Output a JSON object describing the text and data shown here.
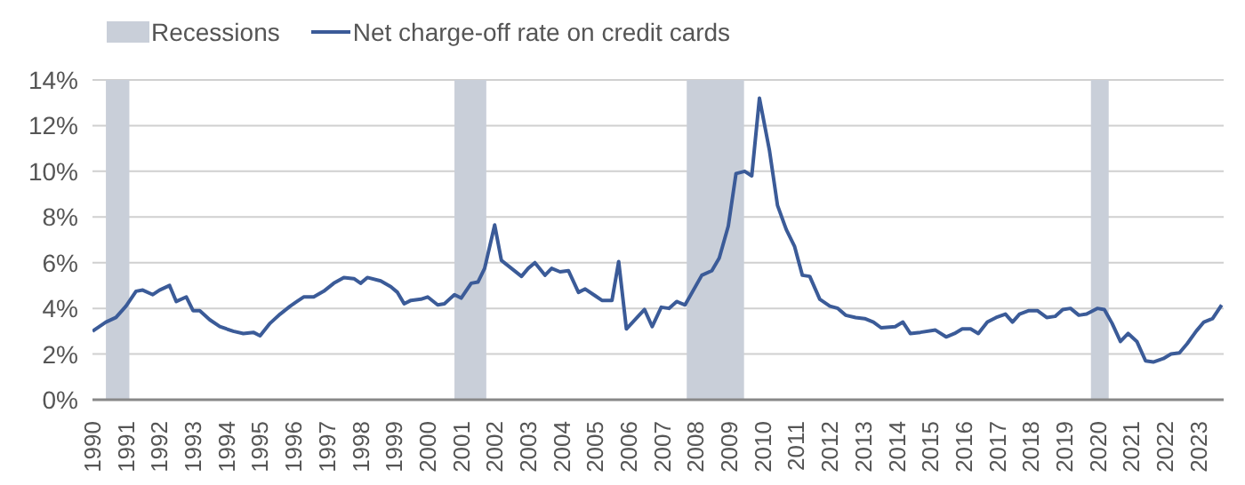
{
  "chart_data": {
    "type": "line",
    "legend": "top left",
    "grid": "y",
    "x": [
      1990.0,
      1990.4,
      1990.7,
      1991.0,
      1991.3,
      1991.5,
      1991.8,
      1992.0,
      1992.3,
      1992.5,
      1992.8,
      1993.0,
      1993.2,
      1993.5,
      1993.8,
      1994.2,
      1994.5,
      1994.8,
      1995.0,
      1995.3,
      1995.6,
      1995.9,
      1996.1,
      1996.3,
      1996.6,
      1996.9,
      1997.2,
      1997.5,
      1997.8,
      1998.0,
      1998.2,
      1998.6,
      1998.9,
      1999.1,
      1999.3,
      1999.5,
      1999.8,
      2000.0,
      2000.3,
      2000.5,
      2000.8,
      2001.0,
      2001.3,
      2001.5,
      2001.7,
      2002.0,
      2002.2,
      2002.5,
      2002.8,
      2003.0,
      2003.2,
      2003.5,
      2003.7,
      2003.95,
      2004.2,
      2004.5,
      2004.7,
      2005.0,
      2005.2,
      2005.5,
      2005.7,
      2005.93,
      2006.47,
      2006.7,
      2006.97,
      2007.2,
      2007.43,
      2007.68,
      2008.18,
      2008.48,
      2008.7,
      2008.97,
      2009.2,
      2009.46,
      2009.67,
      2009.9,
      2010.2,
      2010.44,
      2010.7,
      2010.95,
      2011.18,
      2011.4,
      2011.7,
      2012.0,
      2012.24,
      2012.47,
      2012.77,
      2013.04,
      2013.3,
      2013.53,
      2013.95,
      2014.18,
      2014.4,
      2014.7,
      2015.15,
      2015.47,
      2015.72,
      2015.95,
      2016.2,
      2016.43,
      2016.7,
      2016.96,
      2017.24,
      2017.45,
      2017.66,
      2017.94,
      2018.19,
      2018.47,
      2018.72,
      2018.95,
      2019.18,
      2019.43,
      2019.66,
      2019.98,
      2020.19,
      2020.42,
      2020.67,
      2020.9,
      2021.16,
      2021.42,
      2021.65,
      2021.95,
      2022.18,
      2022.43,
      2022.66,
      2022.93,
      2023.16,
      2023.42,
      2023.69
    ],
    "series": [
      {
        "name": "Net charge-off rate on credit cards",
        "color": "#3b5b98",
        "values": [
          3.0,
          3.4,
          3.6,
          4.1,
          4.75,
          4.8,
          4.6,
          4.8,
          5.0,
          4.3,
          4.5,
          3.9,
          3.9,
          3.5,
          3.2,
          3.0,
          2.9,
          2.95,
          2.8,
          3.35,
          3.75,
          4.1,
          4.3,
          4.5,
          4.5,
          4.75,
          5.1,
          5.35,
          5.3,
          5.1,
          5.35,
          5.2,
          4.95,
          4.7,
          4.2,
          4.35,
          4.4,
          4.5,
          4.15,
          4.2,
          4.6,
          4.45,
          5.1,
          5.15,
          5.75,
          7.65,
          6.1,
          5.75,
          5.4,
          5.75,
          6.0,
          5.45,
          5.75,
          5.6,
          5.65,
          4.7,
          4.85,
          4.55,
          4.35,
          4.35,
          6.05,
          3.1,
          3.95,
          3.2,
          4.05,
          4.0,
          4.3,
          4.15,
          5.45,
          5.65,
          6.2,
          7.6,
          9.9,
          10.0,
          9.8,
          13.2,
          10.9,
          8.5,
          7.45,
          6.7,
          5.45,
          5.4,
          4.4,
          4.1,
          4.0,
          3.7,
          3.6,
          3.55,
          3.4,
          3.15,
          3.2,
          3.4,
          2.9,
          2.95,
          3.05,
          2.75,
          2.9,
          3.1,
          3.1,
          2.9,
          3.4,
          3.6,
          3.75,
          3.4,
          3.75,
          3.9,
          3.9,
          3.6,
          3.65,
          3.95,
          4.0,
          3.7,
          3.75,
          4.0,
          3.95,
          3.35,
          2.55,
          2.9,
          2.55,
          1.7,
          1.65,
          1.8,
          2.0,
          2.05,
          2.45,
          3.0,
          3.4,
          3.55,
          4.15
        ]
      }
    ],
    "xlim": [
      1990,
      2023.75
    ],
    "xticks": [
      1990,
      1991,
      1992,
      1993,
      1994,
      1995,
      1996,
      1997,
      1998,
      1999,
      2000,
      2001,
      2002,
      2003,
      2004,
      2005,
      2006,
      2007,
      2008,
      2009,
      2010,
      2011,
      2012,
      2013,
      2014,
      2015,
      2016,
      2017,
      2018,
      2019,
      2020,
      2021,
      2022,
      2023
    ],
    "ylim": [
      0,
      14
    ],
    "yticks": [
      {
        "value": 0,
        "label": "0%"
      },
      {
        "value": 2,
        "label": "2%"
      },
      {
        "value": 4,
        "label": "4%"
      },
      {
        "value": 6,
        "label": "6%"
      },
      {
        "value": 8,
        "label": "8%"
      },
      {
        "value": 10,
        "label": "10%"
      },
      {
        "value": 12,
        "label": "12%"
      },
      {
        "value": 14,
        "label": "14%"
      }
    ],
    "bands": [
      {
        "axis": "x",
        "from": 1990.4,
        "to": 1991.1,
        "label": "Recessions",
        "color": "#c9cfd9"
      },
      {
        "axis": "x",
        "from": 2000.8,
        "to": 2001.75,
        "color": "#c9cfd9"
      },
      {
        "axis": "x",
        "from": 2007.73,
        "to": 2009.44,
        "color": "#c9cfd9"
      },
      {
        "axis": "x",
        "from": 2019.79,
        "to": 2020.32,
        "color": "#c9cfd9"
      }
    ]
  }
}
